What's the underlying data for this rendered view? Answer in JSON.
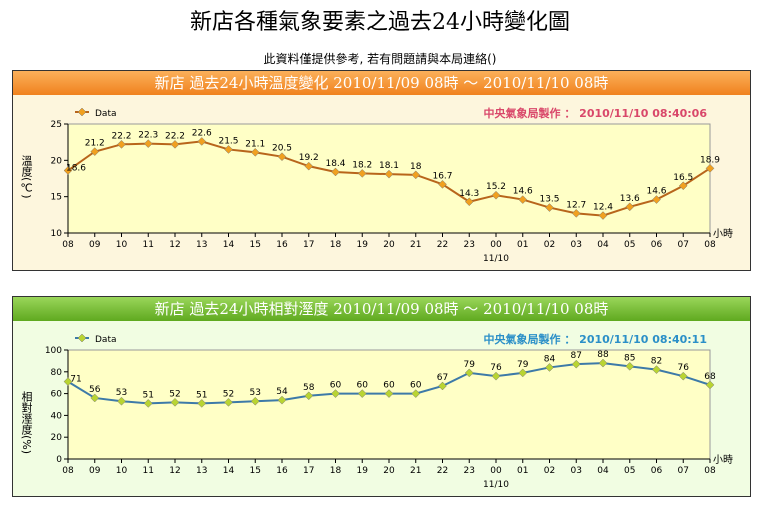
{
  "page": {
    "title": "新店各種氣象要素之過去24小時變化圖",
    "notice": "此資料僅提供參考, 若有問題請與本局連絡()"
  },
  "chart_data": [
    {
      "type": "line",
      "title": "新店  過去24小時溫度變化  2010/11/09  08時  ～  2010/11/10  08時",
      "credit": "中央氣象局製作 ： 2010/11/10  08:40:06",
      "legend": "Data",
      "ylabel": "溫度(℃)",
      "xunit": "小時",
      "date_label": "11/10",
      "ylim": [
        10,
        25
      ],
      "yticks": [
        10,
        15,
        20,
        25
      ],
      "categories": [
        "08",
        "09",
        "10",
        "11",
        "12",
        "13",
        "14",
        "15",
        "16",
        "17",
        "18",
        "19",
        "20",
        "21",
        "22",
        "23",
        "00",
        "01",
        "02",
        "03",
        "04",
        "05",
        "06",
        "07",
        "08"
      ],
      "values": [
        18.6,
        21.2,
        22.2,
        22.3,
        22.2,
        22.6,
        21.5,
        21.1,
        20.5,
        19.2,
        18.4,
        18.2,
        18.1,
        18,
        16.7,
        14.3,
        15.2,
        14.6,
        13.5,
        12.7,
        12.4,
        13.6,
        14.6,
        16.5,
        18.9
      ],
      "colors": {
        "line": "#b8651b",
        "marker": "#f0a020",
        "credit": "#d9476a"
      }
    },
    {
      "type": "line",
      "title": "新店  過去24小時相對溼度  2010/11/09  08時  ～  2010/11/10  08時",
      "credit": "中央氣象局製作 ： 2010/11/10  08:40:11",
      "legend": "Data",
      "ylabel": "相對溼度(%)",
      "xunit": "小時",
      "date_label": "11/10",
      "ylim": [
        0,
        100
      ],
      "yticks": [
        0,
        20,
        40,
        60,
        80,
        100
      ],
      "categories": [
        "08",
        "09",
        "10",
        "11",
        "12",
        "13",
        "14",
        "15",
        "16",
        "17",
        "18",
        "19",
        "20",
        "21",
        "22",
        "23",
        "00",
        "01",
        "02",
        "03",
        "04",
        "05",
        "06",
        "07",
        "08"
      ],
      "values": [
        71,
        56,
        53,
        51,
        52,
        51,
        52,
        53,
        54,
        58,
        60,
        60,
        60,
        60,
        67,
        79,
        76,
        79,
        84,
        87,
        88,
        85,
        82,
        76,
        68
      ],
      "colors": {
        "line": "#3d7aa8",
        "marker": "#b9d432",
        "credit": "#2a8fc8"
      }
    }
  ]
}
